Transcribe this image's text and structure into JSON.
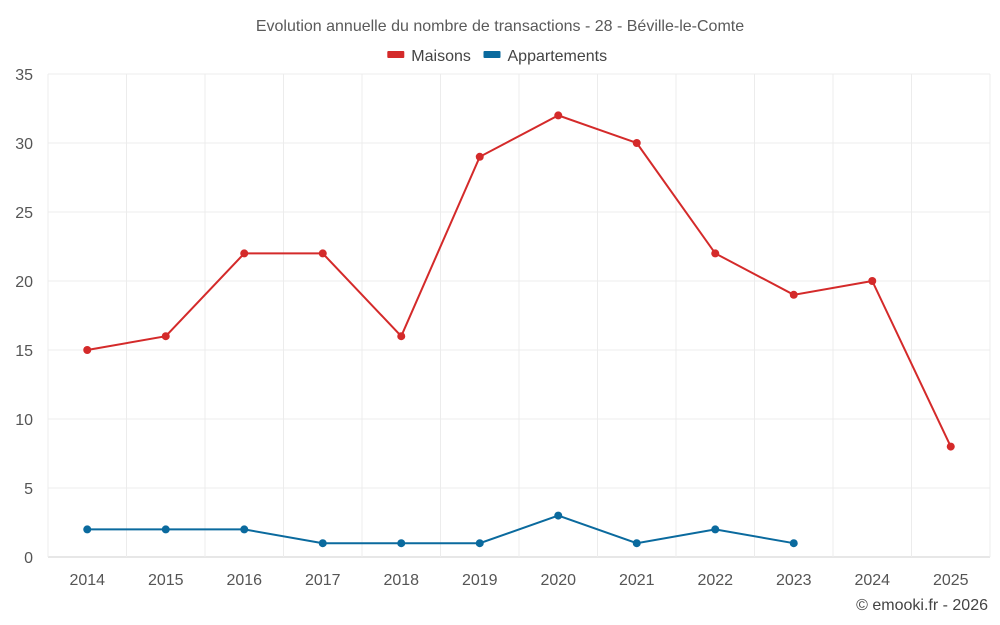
{
  "chart_data": {
    "type": "line",
    "title": "Evolution annuelle du nombre de transactions - 28 - Béville-le-Comte",
    "categories": [
      "2014",
      "2015",
      "2016",
      "2017",
      "2018",
      "2019",
      "2020",
      "2021",
      "2022",
      "2023",
      "2024",
      "2025"
    ],
    "series": [
      {
        "name": "Maisons",
        "color": "#d42a2a",
        "values": [
          15,
          16,
          22,
          22,
          16,
          29,
          32,
          30,
          22,
          19,
          20,
          8
        ]
      },
      {
        "name": "Appartements",
        "color": "#0a6a9e",
        "values": [
          2,
          2,
          2,
          1,
          1,
          1,
          3,
          1,
          2,
          1,
          null,
          null
        ]
      }
    ],
    "ylim": [
      0,
      35
    ],
    "yticks": [
      "0",
      "5",
      "10",
      "15",
      "20",
      "25",
      "30",
      "35"
    ],
    "xlabel": "",
    "ylabel": "",
    "grid": true,
    "legend_position": "top-center"
  },
  "credit": "© emooki.fr - 2026"
}
